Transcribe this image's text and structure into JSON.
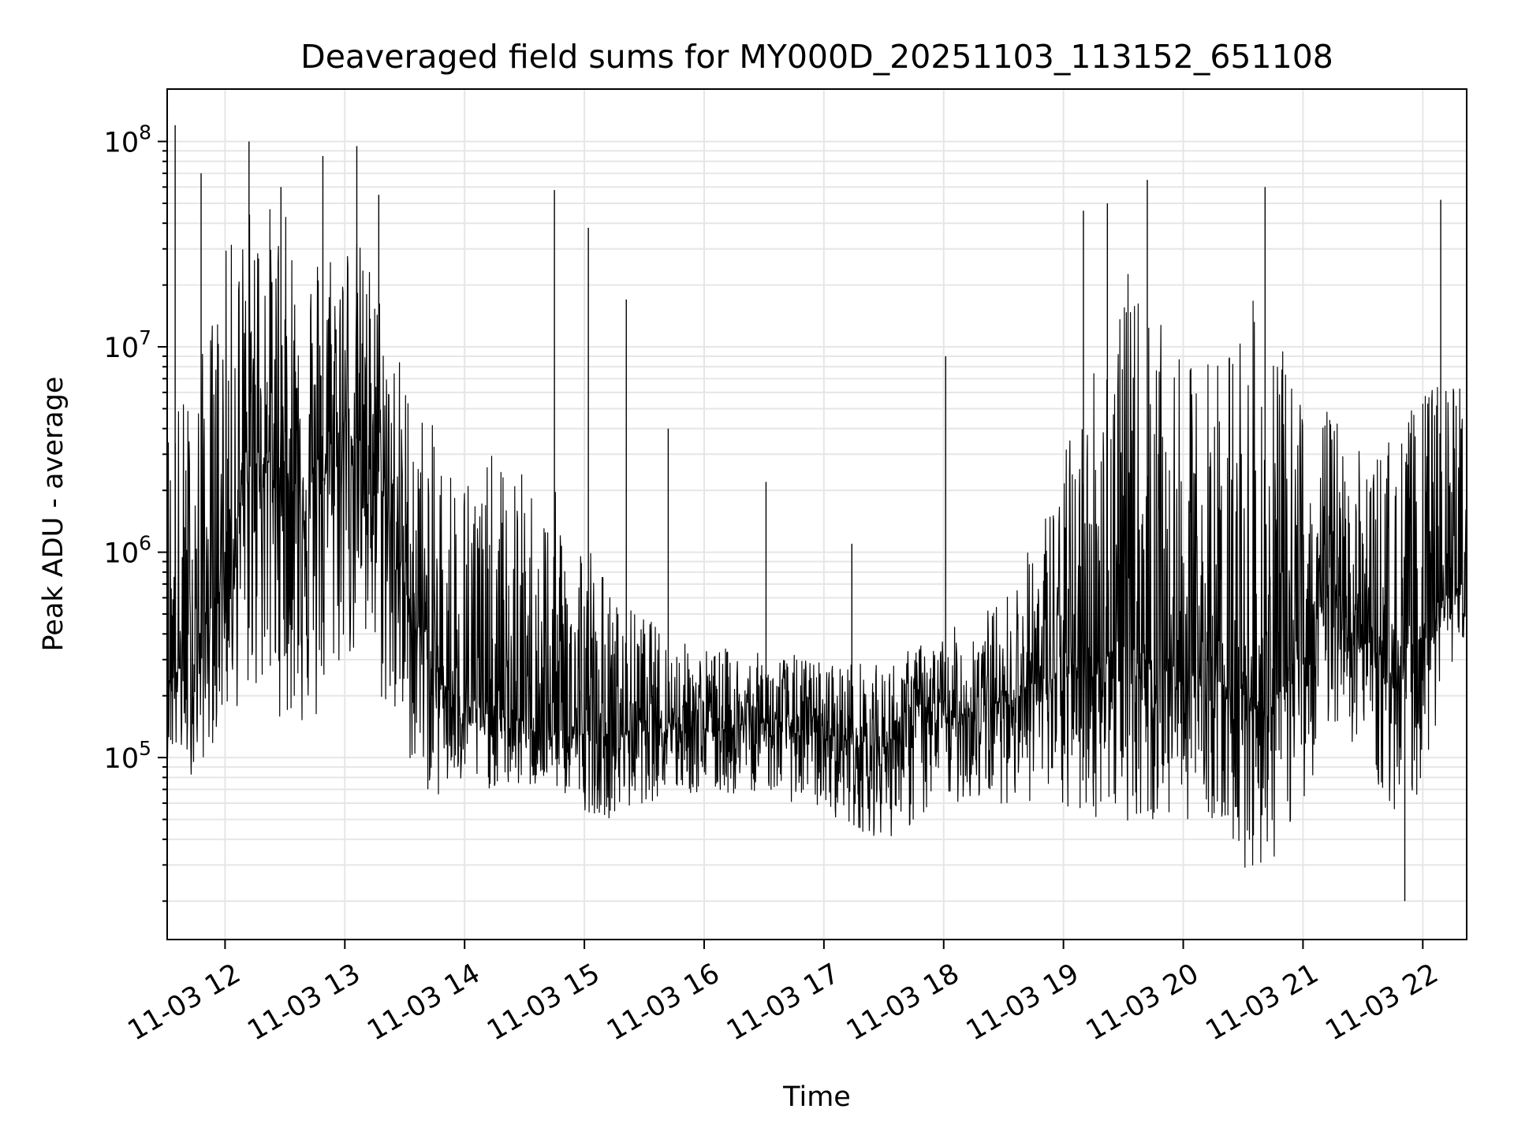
{
  "chart_data": {
    "type": "line",
    "title": "Deaveraged field sums for MY000D_20251103_113152_651108",
    "xlabel": "Time",
    "ylabel": "Peak ADU - average",
    "x_ticks": [
      "11-03 12",
      "11-03 13",
      "11-03 14",
      "11-03 15",
      "11-03 16",
      "11-03 17",
      "11-03 18",
      "11-03 19",
      "11-03 20",
      "11-03 21",
      "11-03 22"
    ],
    "y_ticks": [
      {
        "base": "10",
        "exp": "5"
      },
      {
        "base": "10",
        "exp": "6"
      },
      {
        "base": "10",
        "exp": "7"
      },
      {
        "base": "10",
        "exp": "8"
      }
    ],
    "xlim": [
      "2025-11-03 11:31",
      "2025-11-03 22:22"
    ],
    "ylim": [
      13000,
      180000000
    ],
    "yscale": "log",
    "grid": true,
    "line_color": "#000000",
    "grid_color": "#e6e6e6",
    "series": [
      {
        "x": [
          "2025-11-03 11:31",
          "2025-11-03 11:45",
          "2025-11-03 12:00",
          "2025-11-03 12:15",
          "2025-11-03 12:30",
          "2025-11-03 12:45",
          "2025-11-03 13:00",
          "2025-11-03 13:15",
          "2025-11-03 13:30",
          "2025-11-03 13:45",
          "2025-11-03 14:00",
          "2025-11-03 14:15",
          "2025-11-03 14:30",
          "2025-11-03 14:45",
          "2025-11-03 15:00",
          "2025-11-03 15:15",
          "2025-11-03 15:30",
          "2025-11-03 15:45",
          "2025-11-03 16:00",
          "2025-11-03 16:15",
          "2025-11-03 16:30",
          "2025-11-03 16:45",
          "2025-11-03 17:00",
          "2025-11-03 17:15",
          "2025-11-03 17:30",
          "2025-11-03 17:45",
          "2025-11-03 18:00",
          "2025-11-03 18:15",
          "2025-11-03 18:30",
          "2025-11-03 18:45",
          "2025-11-03 19:00",
          "2025-11-03 19:15",
          "2025-11-03 19:30",
          "2025-11-03 19:45",
          "2025-11-03 20:00",
          "2025-11-03 20:15",
          "2025-11-03 20:30",
          "2025-11-03 20:45",
          "2025-11-03 21:00",
          "2025-11-03 21:15",
          "2025-11-03 21:30",
          "2025-11-03 21:45",
          "2025-11-03 22:00",
          "2025-11-03 22:15",
          "2025-11-03 22:22"
        ],
        "values": [
          250000,
          300000,
          900000,
          3000000,
          2500000,
          1800000,
          4000000,
          3000000,
          700000,
          250000,
          180000,
          160000,
          150000,
          140000,
          130000,
          120000,
          160000,
          150000,
          140000,
          140000,
          150000,
          140000,
          130000,
          120000,
          110000,
          180000,
          150000,
          170000,
          190000,
          230000,
          250000,
          300000,
          350000,
          300000,
          260000,
          250000,
          200000,
          180000,
          350000,
          700000,
          400000,
          250000,
          400000,
          650000,
          700000
        ],
        "upper": [
          6000000,
          7000000,
          30000000,
          60000000,
          45000000,
          35000000,
          45000000,
          25000000,
          8000000,
          4000000,
          3000000,
          3000000,
          2500000,
          2000000,
          1500000,
          600000,
          500000,
          380000,
          350000,
          340000,
          320000,
          320000,
          300000,
          300000,
          280000,
          350000,
          400000,
          500000,
          600000,
          1200000,
          3000000,
          10000000,
          25000000,
          15000000,
          8000000,
          10000000,
          20000000,
          12000000,
          6000000,
          5000000,
          3000000,
          4000000,
          6000000,
          8000000,
          7000000
        ],
        "lower": [
          100000,
          80000,
          150000,
          200000,
          150000,
          120000,
          300000,
          200000,
          100000,
          60000,
          70000,
          70000,
          70000,
          70000,
          55000,
          50000,
          60000,
          65000,
          65000,
          65000,
          70000,
          60000,
          55000,
          45000,
          40000,
          45000,
          60000,
          60000,
          60000,
          60000,
          50000,
          50000,
          50000,
          45000,
          50000,
          50000,
          28000,
          30000,
          60000,
          150000,
          100000,
          50000,
          70000,
          300000,
          400000
        ],
        "spikes": [
          {
            "x": "2025-11-03 11:35",
            "value": 120000000
          },
          {
            "x": "2025-11-03 11:48",
            "value": 70000000
          },
          {
            "x": "2025-11-03 12:12",
            "value": 100000000
          },
          {
            "x": "2025-11-03 12:28",
            "value": 60000000
          },
          {
            "x": "2025-11-03 12:49",
            "value": 85000000
          },
          {
            "x": "2025-11-03 13:06",
            "value": 95000000
          },
          {
            "x": "2025-11-03 13:17",
            "value": 55000000
          },
          {
            "x": "2025-11-03 14:45",
            "value": 58000000
          },
          {
            "x": "2025-11-03 15:02",
            "value": 38000000
          },
          {
            "x": "2025-11-03 15:21",
            "value": 17000000
          },
          {
            "x": "2025-11-03 15:42",
            "value": 4000000
          },
          {
            "x": "2025-11-03 16:31",
            "value": 2200000
          },
          {
            "x": "2025-11-03 17:14",
            "value": 1100000
          },
          {
            "x": "2025-11-03 18:01",
            "value": 9000000
          },
          {
            "x": "2025-11-03 19:10",
            "value": 46000000
          },
          {
            "x": "2025-11-03 19:22",
            "value": 50000000
          },
          {
            "x": "2025-11-03 19:42",
            "value": 65000000
          },
          {
            "x": "2025-11-03 20:41",
            "value": 60000000
          },
          {
            "x": "2025-11-03 21:51",
            "value": 20000
          },
          {
            "x": "2025-11-03 22:09",
            "value": 52000000
          }
        ]
      }
    ]
  }
}
